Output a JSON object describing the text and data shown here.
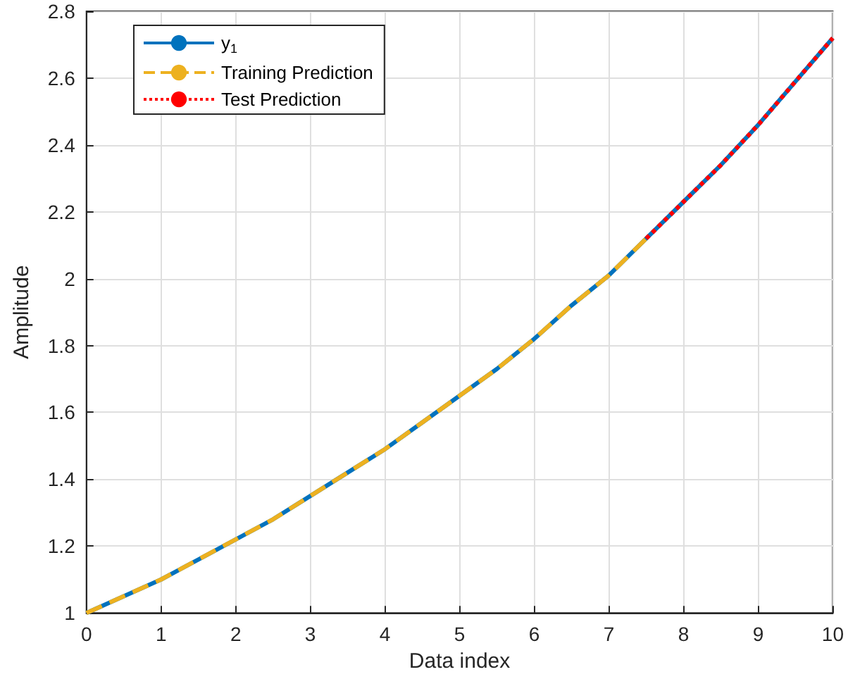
{
  "chart_data": {
    "type": "line",
    "xlabel": "Data index",
    "ylabel": "Amplitude",
    "xlim": [
      0,
      10
    ],
    "xticks": [
      0,
      1,
      2,
      3,
      4,
      5,
      6,
      7,
      8,
      9,
      10
    ],
    "ylim": [
      1,
      2.8
    ],
    "yticks": [
      1,
      1.2,
      1.4,
      1.6,
      1.8,
      2,
      2.2,
      2.4,
      2.6,
      2.8
    ],
    "grid": true,
    "legend": "top left",
    "marker": "none",
    "series": [
      {
        "name": "y$_{1}$",
        "color": "#0072bd",
        "line_style": "solid",
        "x": [
          0,
          0.5,
          1,
          1.5,
          2,
          2.5,
          3,
          3.5,
          4,
          4.5,
          5,
          5.5,
          6,
          6.5,
          7,
          7.5,
          8,
          8.5,
          9,
          9.5,
          10
        ],
        "values": [
          1.0,
          1.05,
          1.1,
          1.16,
          1.22,
          1.28,
          1.35,
          1.42,
          1.49,
          1.57,
          1.65,
          1.73,
          1.82,
          1.92,
          2.01,
          2.12,
          2.23,
          2.34,
          2.46,
          2.59,
          2.72
        ]
      },
      {
        "name": "Training Prediction",
        "color": "#edb120",
        "line_style": "dashed",
        "x": [
          0,
          0.5,
          1,
          1.5,
          2,
          2.5,
          3,
          3.5,
          4,
          4.5,
          5,
          5.5,
          6,
          6.5,
          7,
          7.5
        ],
        "values": [
          1.0,
          1.05,
          1.1,
          1.16,
          1.22,
          1.28,
          1.35,
          1.42,
          1.49,
          1.57,
          1.65,
          1.73,
          1.82,
          1.92,
          2.01,
          2.12
        ]
      },
      {
        "name": "Test Prediction",
        "color": "#ff0000",
        "line_style": "dotted",
        "x": [
          7.5,
          8,
          8.5,
          9,
          9.5,
          10
        ],
        "values": [
          2.12,
          2.23,
          2.34,
          2.46,
          2.59,
          2.72
        ]
      }
    ]
  }
}
